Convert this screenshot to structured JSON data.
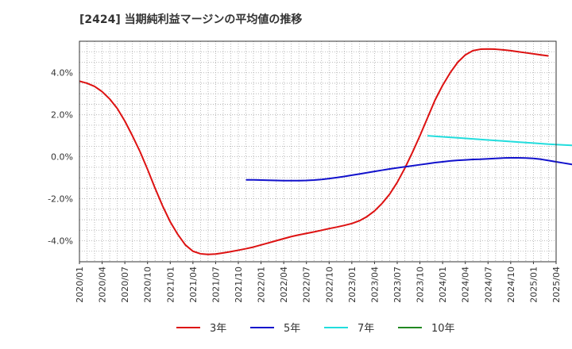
{
  "chart_data": {
    "type": "line",
    "title": "[2424]  当期純利益マージンの平均値の推移",
    "x_ticks": [
      "2020/01",
      "2020/04",
      "2020/07",
      "2020/10",
      "2021/01",
      "2021/04",
      "2021/07",
      "2021/10",
      "2022/01",
      "2022/04",
      "2022/07",
      "2022/10",
      "2023/01",
      "2023/04",
      "2023/07",
      "2023/10",
      "2024/01",
      "2024/04",
      "2024/07",
      "2024/10",
      "2025/01",
      "2025/04"
    ],
    "y_ticks": [
      -4.0,
      -2.0,
      0.0,
      2.0,
      4.0
    ],
    "y_tick_labels": [
      "-4.0%",
      "-2.0%",
      "0.0%",
      "2.0%",
      "4.0%"
    ],
    "ylim": [
      -5.0,
      5.5
    ],
    "x_range": [
      "2020/01",
      "2025/04"
    ],
    "grid": true,
    "legend_position": "bottom",
    "series": [
      {
        "name": "3年",
        "color": "#dd1111",
        "points": [
          [
            "2020/01",
            3.6
          ],
          [
            "2020/02",
            3.5
          ],
          [
            "2020/03",
            3.35
          ],
          [
            "2020/04",
            3.1
          ],
          [
            "2020/05",
            2.75
          ],
          [
            "2020/06",
            2.3
          ],
          [
            "2020/07",
            1.7
          ],
          [
            "2020/08",
            1.0
          ],
          [
            "2020/09",
            0.25
          ],
          [
            "2020/10",
            -0.6
          ],
          [
            "2020/11",
            -1.5
          ],
          [
            "2020/12",
            -2.35
          ],
          [
            "2021/01",
            -3.1
          ],
          [
            "2021/02",
            -3.7
          ],
          [
            "2021/03",
            -4.2
          ],
          [
            "2021/04",
            -4.5
          ],
          [
            "2021/05",
            -4.62
          ],
          [
            "2021/06",
            -4.65
          ],
          [
            "2021/07",
            -4.63
          ],
          [
            "2021/08",
            -4.58
          ],
          [
            "2021/09",
            -4.52
          ],
          [
            "2021/10",
            -4.45
          ],
          [
            "2021/11",
            -4.38
          ],
          [
            "2021/12",
            -4.3
          ],
          [
            "2022/01",
            -4.2
          ],
          [
            "2022/02",
            -4.1
          ],
          [
            "2022/03",
            -4.0
          ],
          [
            "2022/04",
            -3.9
          ],
          [
            "2022/05",
            -3.8
          ],
          [
            "2022/06",
            -3.72
          ],
          [
            "2022/07",
            -3.65
          ],
          [
            "2022/08",
            -3.58
          ],
          [
            "2022/09",
            -3.5
          ],
          [
            "2022/10",
            -3.42
          ],
          [
            "2022/11",
            -3.35
          ],
          [
            "2022/12",
            -3.27
          ],
          [
            "2023/01",
            -3.18
          ],
          [
            "2023/02",
            -3.05
          ],
          [
            "2023/03",
            -2.85
          ],
          [
            "2023/04",
            -2.58
          ],
          [
            "2023/05",
            -2.22
          ],
          [
            "2023/06",
            -1.78
          ],
          [
            "2023/07",
            -1.22
          ],
          [
            "2023/08",
            -0.55
          ],
          [
            "2023/09",
            0.2
          ],
          [
            "2023/10",
            1.0
          ],
          [
            "2023/11",
            1.85
          ],
          [
            "2023/12",
            2.7
          ],
          [
            "2024/01",
            3.4
          ],
          [
            "2024/02",
            4.0
          ],
          [
            "2024/03",
            4.5
          ],
          [
            "2024/04",
            4.85
          ],
          [
            "2024/05",
            5.05
          ],
          [
            "2024/06",
            5.12
          ],
          [
            "2024/07",
            5.13
          ],
          [
            "2024/08",
            5.12
          ],
          [
            "2024/09",
            5.09
          ],
          [
            "2024/10",
            5.05
          ],
          [
            "2024/11",
            5.0
          ],
          [
            "2024/12",
            4.95
          ],
          [
            "2025/01",
            4.9
          ],
          [
            "2025/02",
            4.85
          ],
          [
            "2025/03",
            4.8
          ]
        ]
      },
      {
        "name": "5年",
        "color": "#1111cc",
        "points": [
          [
            "2021/11",
            -1.1
          ],
          [
            "2021/12",
            -1.1
          ],
          [
            "2022/01",
            -1.11
          ],
          [
            "2022/02",
            -1.12
          ],
          [
            "2022/03",
            -1.13
          ],
          [
            "2022/04",
            -1.14
          ],
          [
            "2022/05",
            -1.14
          ],
          [
            "2022/06",
            -1.14
          ],
          [
            "2022/07",
            -1.13
          ],
          [
            "2022/08",
            -1.11
          ],
          [
            "2022/09",
            -1.08
          ],
          [
            "2022/10",
            -1.04
          ],
          [
            "2022/11",
            -0.99
          ],
          [
            "2022/12",
            -0.94
          ],
          [
            "2023/01",
            -0.88
          ],
          [
            "2023/02",
            -0.82
          ],
          [
            "2023/03",
            -0.76
          ],
          [
            "2023/04",
            -0.7
          ],
          [
            "2023/05",
            -0.64
          ],
          [
            "2023/06",
            -0.58
          ],
          [
            "2023/07",
            -0.53
          ],
          [
            "2023/08",
            -0.48
          ],
          [
            "2023/09",
            -0.43
          ],
          [
            "2023/10",
            -0.38
          ],
          [
            "2023/11",
            -0.33
          ],
          [
            "2023/12",
            -0.28
          ],
          [
            "2024/01",
            -0.24
          ],
          [
            "2024/02",
            -0.2
          ],
          [
            "2024/03",
            -0.17
          ],
          [
            "2024/04",
            -0.15
          ],
          [
            "2024/05",
            -0.13
          ],
          [
            "2024/06",
            -0.12
          ],
          [
            "2024/07",
            -0.1
          ],
          [
            "2024/08",
            -0.08
          ],
          [
            "2024/09",
            -0.06
          ],
          [
            "2024/10",
            -0.05
          ],
          [
            "2024/11",
            -0.05
          ],
          [
            "2024/12",
            -0.06
          ],
          [
            "2025/01",
            -0.08
          ],
          [
            "2025/02",
            -0.12
          ],
          [
            "2025/03",
            -0.18
          ],
          [
            "2025/04",
            -0.24
          ],
          [
            "2025/05",
            -0.3
          ],
          [
            "2025/06",
            -0.36
          ],
          [
            "2025/07",
            -0.41
          ]
        ]
      },
      {
        "name": "7年",
        "color": "#22dddd",
        "points": [
          [
            "2023/11",
            1.0
          ],
          [
            "2024/01",
            0.95
          ],
          [
            "2024/03",
            0.9
          ],
          [
            "2024/05",
            0.85
          ],
          [
            "2024/07",
            0.8
          ],
          [
            "2024/09",
            0.75
          ],
          [
            "2024/11",
            0.7
          ],
          [
            "2025/01",
            0.65
          ],
          [
            "2025/03",
            0.6
          ],
          [
            "2025/05",
            0.56
          ],
          [
            "2025/07",
            0.53
          ]
        ]
      },
      {
        "name": "10年",
        "color": "#228822",
        "points": []
      }
    ]
  }
}
